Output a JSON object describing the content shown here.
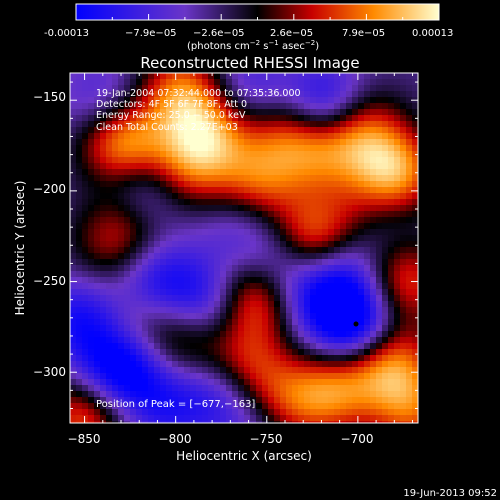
{
  "colorbar": {
    "ticks": [
      "-0.00013",
      "−7.9e−05",
      "−2.6e−05",
      "2.6e−05",
      "7.9e−05",
      "0.00013"
    ],
    "unit_prefix": "(photons cm",
    "unit_exp1": "−2",
    "unit_mid": " s",
    "unit_exp2": "−1",
    "unit_mid2": " asec",
    "unit_exp3": "−2",
    "unit_suffix": ")"
  },
  "plot": {
    "title": "Reconstructed RHESSI Image",
    "xlabel": "Heliocentric X (arcsec)",
    "ylabel": "Heliocentric Y (arcsec)",
    "xticks": [
      "−850",
      "−800",
      "−750",
      "−700"
    ],
    "yticks": [
      "−150",
      "−200",
      "−250",
      "−300"
    ],
    "info_lines": [
      "19-Jan-2004 07:32:44.000 to 07:35:36.000",
      "Detectors: 4F 5F 6F 7F 8F, Att 0",
      "Energy Range: 25.0 − 50.0 keV",
      "Clean     Total Counts: 2.27E+03"
    ],
    "peak_label": "Position of Peak = [−677,−163]"
  },
  "footer": {
    "timestamp": "19-Jun-2013 09:52"
  },
  "colors": {
    "scale": [
      "#0000ff",
      "#6a35c8",
      "#000000",
      "#c80000",
      "#ff8a00",
      "#ffffd0"
    ]
  },
  "chart_data": {
    "type": "heatmap",
    "title": "Reconstructed RHESSI Image",
    "xlabel": "Heliocentric X (arcsec)",
    "ylabel": "Heliocentric Y (arcsec)",
    "xlim": [
      -858,
      -667
    ],
    "ylim": [
      -328,
      -135
    ],
    "color_range": [
      -0.00013,
      0.00013
    ],
    "blobs": [
      {
        "x": -829,
        "y": -174,
        "v": 0.00013
      },
      {
        "x": -825,
        "y": -216,
        "v": 9e-05
      },
      {
        "x": -797,
        "y": -145,
        "v": 0.0001
      },
      {
        "x": -795,
        "y": -190,
        "v": 8e-05
      },
      {
        "x": -782,
        "y": -168,
        "v": 0.00011
      },
      {
        "x": -740,
        "y": -165,
        "v": 7e-05
      },
      {
        "x": -755,
        "y": -195,
        "v": 9e-05
      },
      {
        "x": -758,
        "y": -259,
        "v": 0.00013
      },
      {
        "x": -727,
        "y": -228,
        "v": 0.00012
      },
      {
        "x": -700,
        "y": -166,
        "v": 0.0001
      },
      {
        "x": -680,
        "y": -190,
        "v": 0.00013
      },
      {
        "x": -722,
        "y": -177,
        "v": 9e-05
      },
      {
        "x": -676,
        "y": -250,
        "v": 0.0001
      },
      {
        "x": -684,
        "y": -293,
        "v": 0.00012
      },
      {
        "x": -670,
        "y": -320,
        "v": 9e-05
      },
      {
        "x": -713,
        "y": -310,
        "v": 0.0001
      },
      {
        "x": -740,
        "y": -318,
        "v": 8e-05
      },
      {
        "x": -762,
        "y": -297,
        "v": 9e-05
      },
      {
        "x": -795,
        "y": -283,
        "v": 7e-05
      },
      {
        "x": -822,
        "y": -275,
        "v": 5e-05
      },
      {
        "x": -850,
        "y": -325,
        "v": 0.0001
      },
      {
        "x": -838,
        "y": -235,
        "v": 4e-05
      },
      {
        "x": -700,
        "y": -215,
        "v": 6e-05
      },
      {
        "x": -818,
        "y": -203,
        "v": -0.0001
      },
      {
        "x": -810,
        "y": -250,
        "v": -8e-05
      },
      {
        "x": -780,
        "y": -262,
        "v": -9e-05
      },
      {
        "x": -775,
        "y": -310,
        "v": -7e-05
      },
      {
        "x": -830,
        "y": -297,
        "v": -0.00013
      },
      {
        "x": -852,
        "y": -270,
        "v": -8e-05
      },
      {
        "x": -718,
        "y": -155,
        "v": -0.00012
      },
      {
        "x": -742,
        "y": -240,
        "v": -8e-05
      },
      {
        "x": -720,
        "y": -260,
        "v": -7e-05
      },
      {
        "x": -700,
        "y": -275,
        "v": -0.00013
      },
      {
        "x": -705,
        "y": -243,
        "v": -6e-05
      },
      {
        "x": -690,
        "y": -215,
        "v": -5e-05
      },
      {
        "x": -765,
        "y": -220,
        "v": -4e-05
      },
      {
        "x": -840,
        "y": -150,
        "v": -5e-05
      },
      {
        "x": -760,
        "y": -145,
        "v": -6e-05
      },
      {
        "x": -805,
        "y": -318,
        "v": -6e-05
      },
      {
        "x": -755,
        "y": -330,
        "v": -4e-05
      }
    ]
  }
}
